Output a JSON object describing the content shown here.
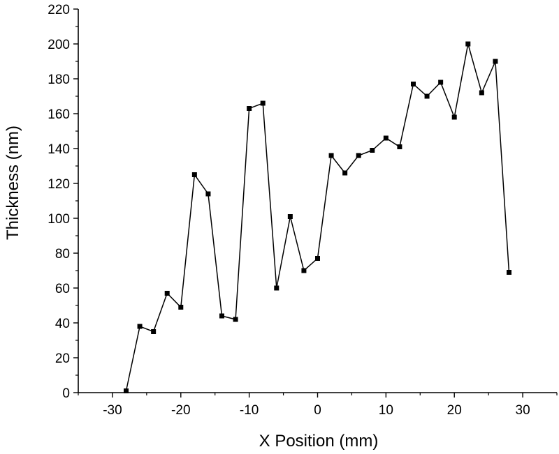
{
  "chart_data": {
    "type": "line",
    "title": "",
    "xlabel": "X Position (mm)",
    "ylabel": "Thickness (nm)",
    "xlim": [
      -35,
      35
    ],
    "ylim": [
      0,
      220
    ],
    "xticks": [
      -30,
      -20,
      -10,
      0,
      10,
      20,
      30
    ],
    "yticks": [
      0,
      20,
      40,
      60,
      80,
      100,
      120,
      140,
      160,
      180,
      200,
      220
    ],
    "grid": false,
    "legend": "none",
    "series": [
      {
        "marker": "square",
        "color": "#000000",
        "x": [
          -28,
          -26,
          -24,
          -22,
          -20,
          -18,
          -16,
          -14,
          -12,
          -10,
          -8,
          -6,
          -4,
          -2,
          0,
          2,
          4,
          6,
          8,
          10,
          12,
          14,
          16,
          18,
          20,
          22,
          24,
          26,
          28
        ],
        "y": [
          1,
          38,
          35,
          57,
          49,
          125,
          114,
          44,
          42,
          163,
          166,
          60,
          101,
          70,
          77,
          136,
          126,
          136,
          139,
          146,
          141,
          177,
          170,
          178,
          158,
          200,
          172,
          190,
          69
        ]
      }
    ]
  }
}
